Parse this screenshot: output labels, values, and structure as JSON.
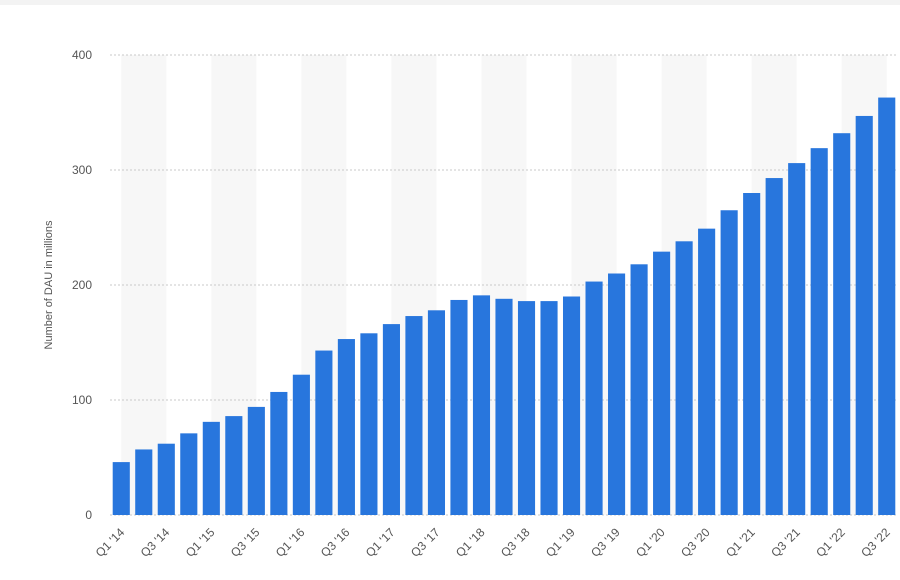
{
  "chart_data": {
    "type": "bar",
    "y_label": "Number of DAU in millions",
    "categories": [
      "Q1 '14",
      null,
      "Q3 '14",
      null,
      "Q1 '15",
      null,
      "Q3 '15",
      null,
      "Q1 '16",
      null,
      "Q3 '16",
      null,
      "Q1 '17",
      null,
      "Q3 '17",
      null,
      "Q1 '18",
      null,
      "Q3 '18",
      null,
      "Q1 '19",
      null,
      "Q3 '19",
      null,
      "Q1 '20",
      null,
      "Q3 '20",
      null,
      "Q1 '21",
      null,
      "Q3 '21",
      null,
      "Q1 '22",
      null,
      "Q3 '22"
    ],
    "values": [
      46,
      57,
      62,
      71,
      81,
      86,
      94,
      107,
      122,
      143,
      153,
      158,
      166,
      173,
      178,
      187,
      191,
      188,
      186,
      186,
      190,
      203,
      210,
      218,
      229,
      238,
      249,
      265,
      280,
      293,
      306,
      319,
      332,
      347,
      363
    ],
    "color": "#2876dd",
    "ylim": [
      0,
      400
    ],
    "yticks": [
      0,
      100,
      200,
      300,
      400
    ],
    "grid": true
  }
}
